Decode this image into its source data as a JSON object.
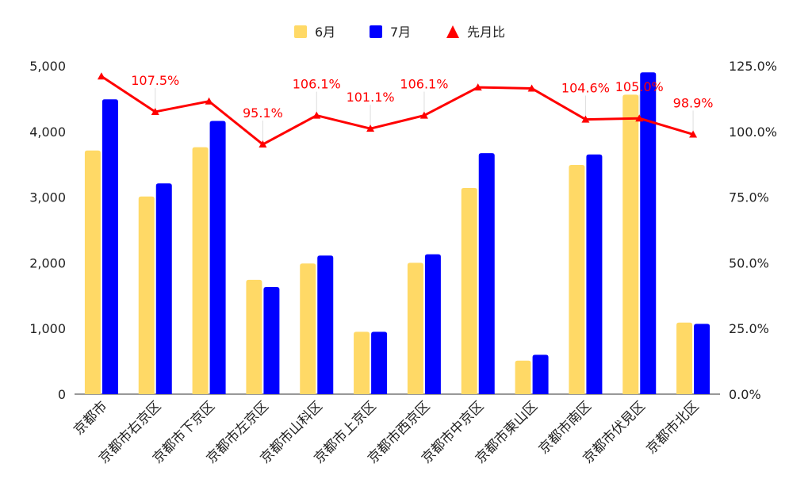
{
  "chart_data": {
    "type": "bar",
    "categories": [
      "京都市",
      "京都市右京区",
      "京都市下京区",
      "京都市左京区",
      "京都市山科区",
      "京都市上京区",
      "京都市西京区",
      "京都市中京区",
      "京都市東山区",
      "京都市南区",
      "京都市伏見区",
      "京都市北区"
    ],
    "series": [
      {
        "name": "6月",
        "kind": "bar",
        "axis": "left",
        "color": "#ffd966",
        "values": [
          3710,
          3010,
          3760,
          1740,
          1990,
          950,
          2000,
          3140,
          510,
          3490,
          4560,
          1090
        ]
      },
      {
        "name": "7月",
        "kind": "bar",
        "axis": "left",
        "color": "#0000ff",
        "values": [
          4490,
          3210,
          4160,
          1630,
          2110,
          950,
          2130,
          3670,
          600,
          3650,
          4900,
          1070
        ]
      },
      {
        "name": "先月比",
        "kind": "line",
        "axis": "right",
        "color": "#ff0000",
        "values": [
          121.0,
          107.5,
          111.5,
          95.1,
          106.1,
          101.1,
          106.1,
          116.8,
          116.4,
          104.6,
          105.0,
          98.9
        ]
      }
    ],
    "data_labels": [
      {
        "index": 1,
        "text": "107.5%"
      },
      {
        "index": 3,
        "text": "95.1%"
      },
      {
        "index": 4,
        "text": "106.1%"
      },
      {
        "index": 5,
        "text": "101.1%"
      },
      {
        "index": 6,
        "text": "106.1%"
      },
      {
        "index": 9,
        "text": "104.6%"
      },
      {
        "index": 10,
        "text": "105.0%"
      },
      {
        "index": 11,
        "text": "98.9%"
      }
    ],
    "y_left": {
      "range": [
        0,
        5000
      ],
      "ticks": [
        "0",
        "1,000",
        "2,000",
        "3,000",
        "4,000",
        "5,000"
      ]
    },
    "y_right": {
      "range": [
        0,
        125
      ],
      "ticks": [
        "0.0%",
        "25.0%",
        "50.0%",
        "75.0%",
        "100.0%",
        "125.0%"
      ]
    },
    "grid": false,
    "legend_position": "top"
  }
}
